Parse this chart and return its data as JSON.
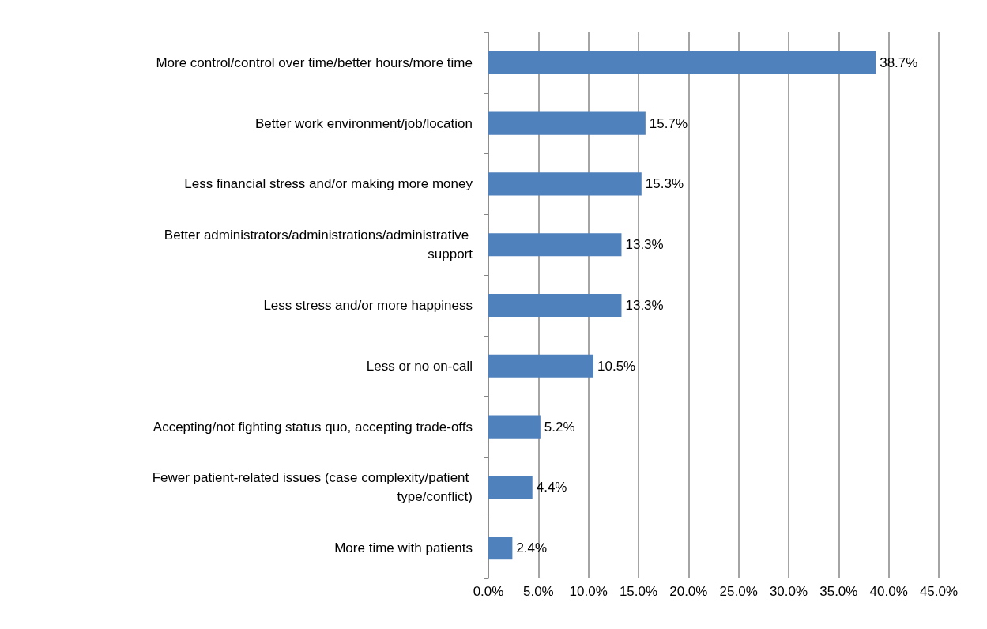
{
  "chart_data": {
    "type": "bar",
    "orientation": "horizontal",
    "categories": [
      "More control/control over time/better hours/more time",
      "Better work environment/job/location",
      "Less financial stress and/or making more money",
      "Better administrators/administrations/administrative support",
      "Less stress and/or more happiness",
      "Less or no on-call",
      "Accepting/not fighting status quo, accepting trade-offs",
      "Fewer patient-related issues (case complexity/patient type/conflict)",
      "More time with patients"
    ],
    "values": [
      38.7,
      15.7,
      15.3,
      13.3,
      13.3,
      10.5,
      5.2,
      4.4,
      2.4
    ],
    "value_labels": [
      "38.7%",
      "15.7%",
      "15.3%",
      "13.3%",
      "13.3%",
      "10.5%",
      "5.2%",
      "4.4%",
      "2.4%"
    ],
    "color": "#4f81bd",
    "xlim": [
      0,
      45
    ],
    "xticks": [
      {
        "value": 0,
        "label": "0.0%"
      },
      {
        "value": 5,
        "label": "5.0%"
      },
      {
        "value": 10,
        "label": "10.0%"
      },
      {
        "value": 15,
        "label": "15.0%"
      },
      {
        "value": 20,
        "label": "20.0%"
      },
      {
        "value": 25,
        "label": "25.0%"
      },
      {
        "value": 30,
        "label": "30.0%"
      },
      {
        "value": 35,
        "label": "35.0%"
      },
      {
        "value": 40,
        "label": "40.0%"
      },
      {
        "value": 45,
        "label": "45.0%"
      }
    ],
    "grid": "x"
  }
}
